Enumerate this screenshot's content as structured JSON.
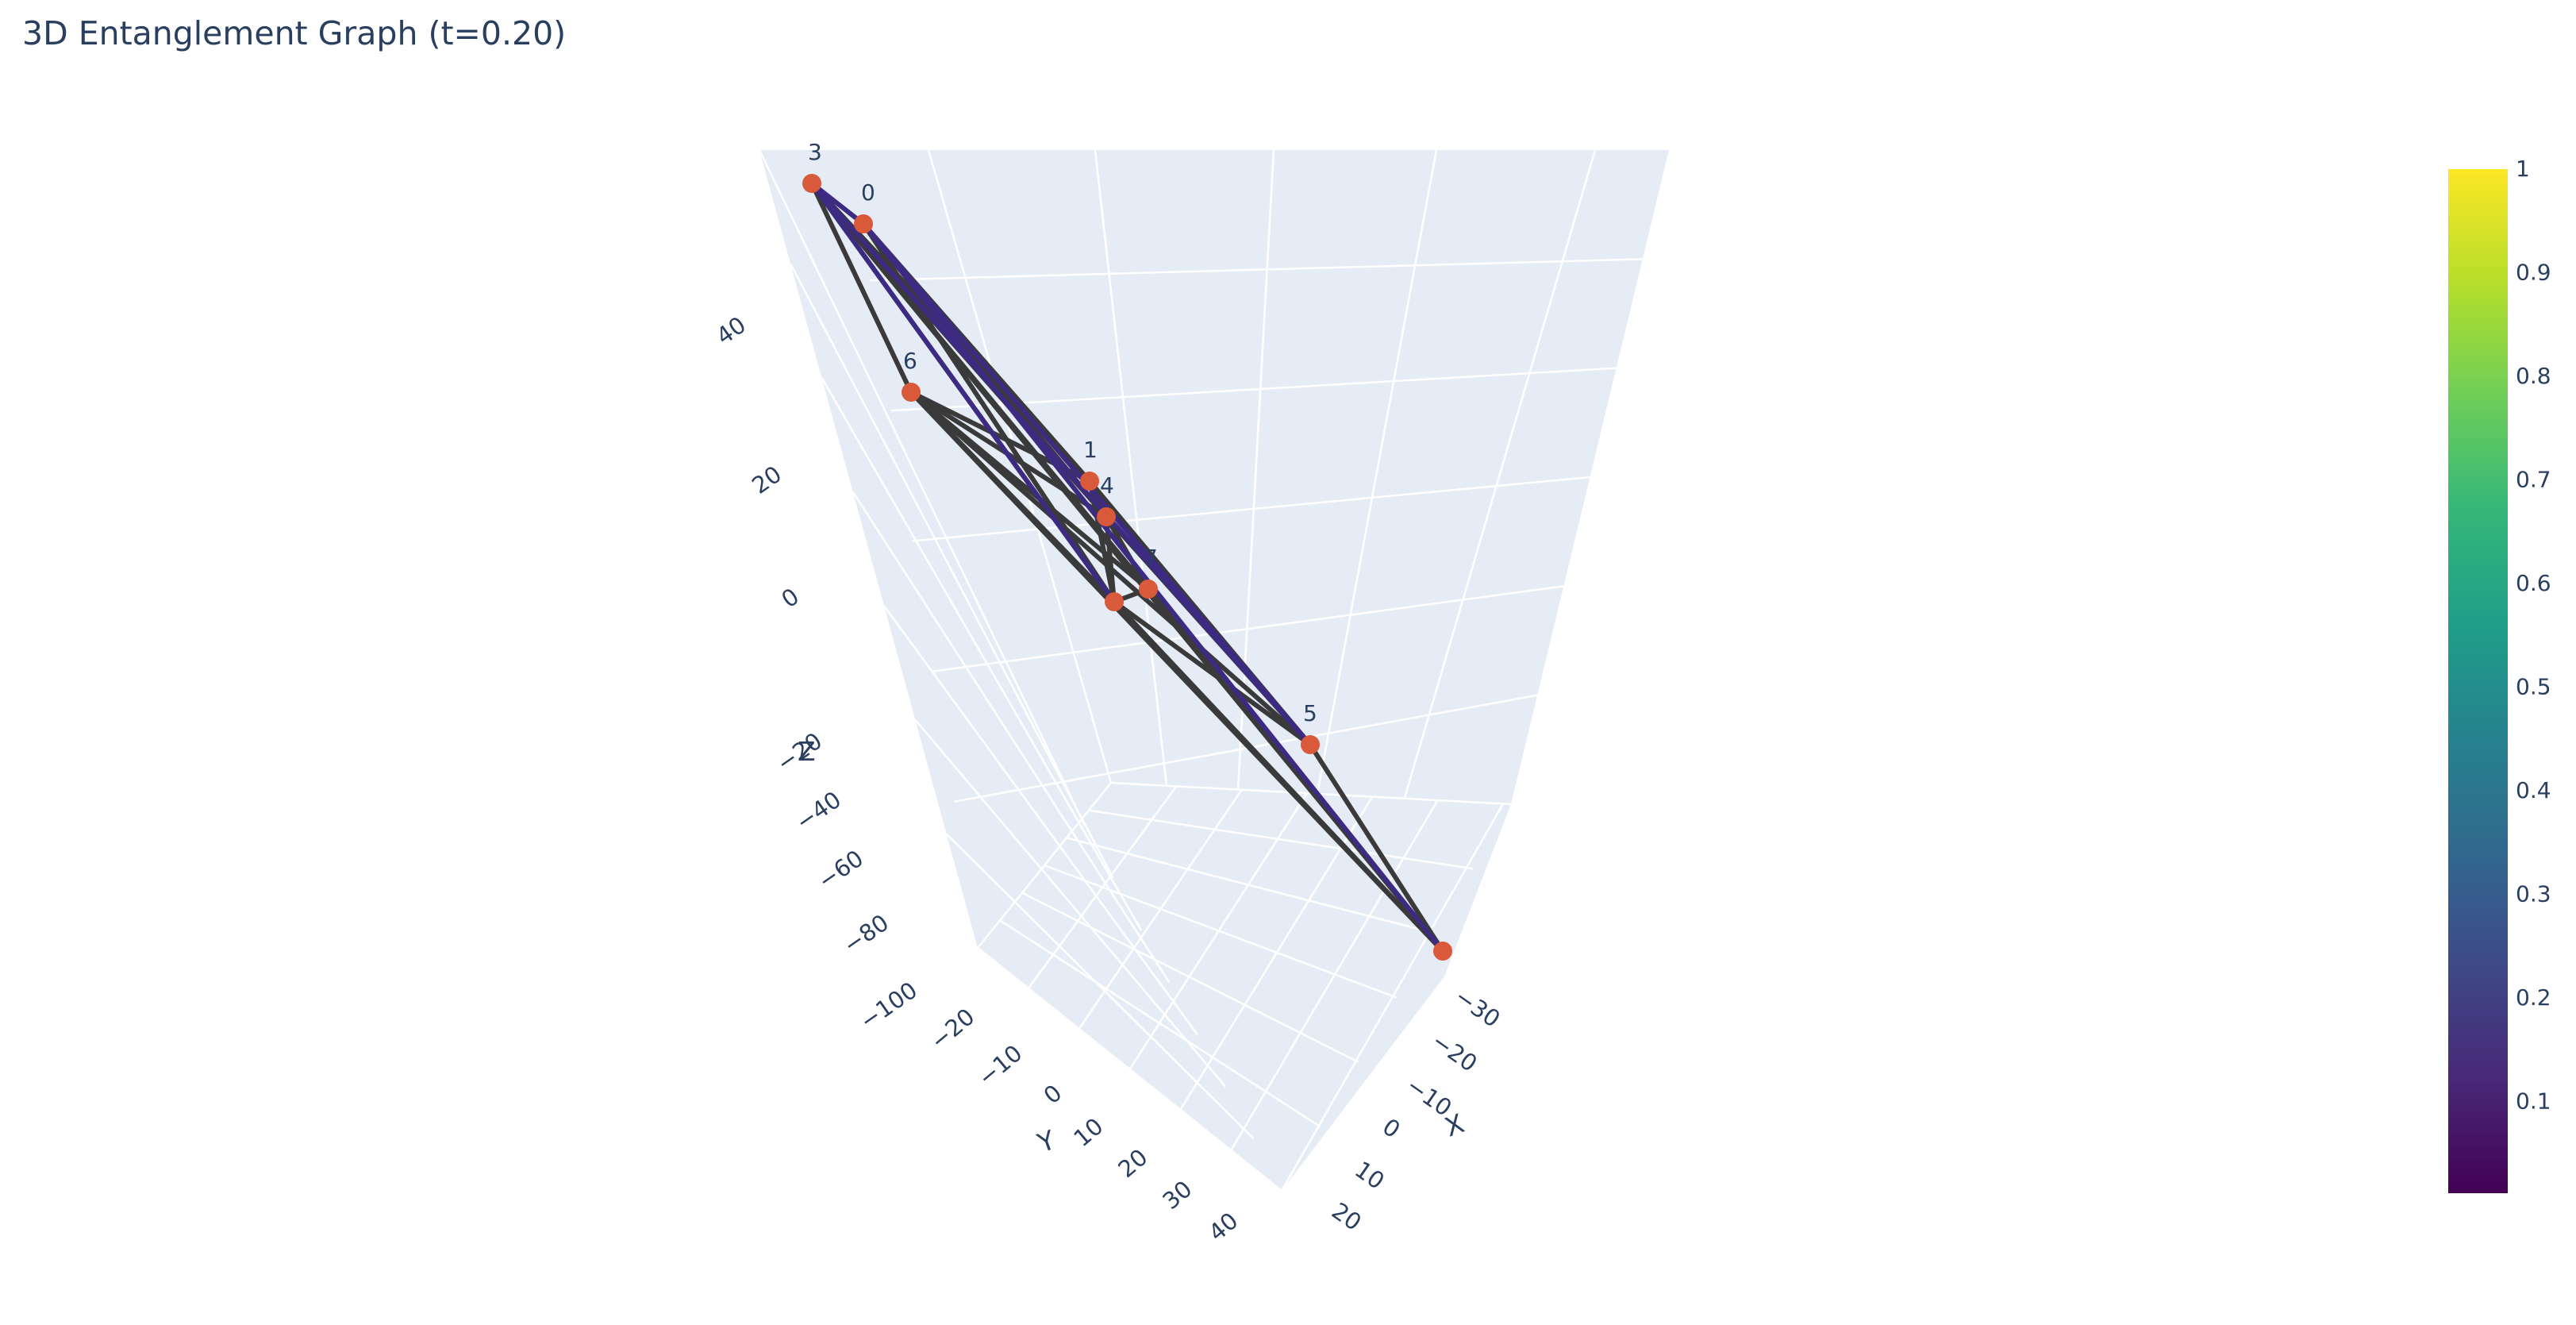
{
  "chart_data": {
    "type": "scatter3d",
    "title": "3D Entanglement Graph (t=0.20)",
    "axes": {
      "x": {
        "title": "X",
        "ticks": [
          "−30",
          "−20",
          "−10",
          "0",
          "10",
          "20"
        ]
      },
      "y": {
        "title": "Y",
        "ticks": [
          "−20",
          "−10",
          "0",
          "10",
          "20",
          "30",
          "40"
        ]
      },
      "z": {
        "title": "Z",
        "ticks": [
          "−100",
          "−80",
          "−60",
          "−40",
          "−20",
          "0",
          "20",
          "40"
        ]
      }
    },
    "nodes": [
      {
        "label": "3"
      },
      {
        "label": "0"
      },
      {
        "label": "6"
      },
      {
        "label": "1"
      },
      {
        "label": "4"
      },
      {
        "label": "7"
      },
      {
        "label": ""
      },
      {
        "label": "5"
      },
      {
        "label": ""
      }
    ],
    "colorbar": {
      "ticks": [
        "1",
        "0.9",
        "0.8",
        "0.7",
        "0.6",
        "0.5",
        "0.4",
        "0.3",
        "0.2",
        "0.1"
      ],
      "colors": [
        "#440154",
        "#482878",
        "#3e4989",
        "#31688e",
        "#26828e",
        "#1f9e89",
        "#35b779",
        "#6ece58",
        "#b5de2b",
        "#fde725"
      ]
    },
    "node_color": "#d9593b",
    "edge_color": "#3a3a3a",
    "edge_highlight_color": "#3d2a82",
    "background_color": "#e5ecf6"
  }
}
